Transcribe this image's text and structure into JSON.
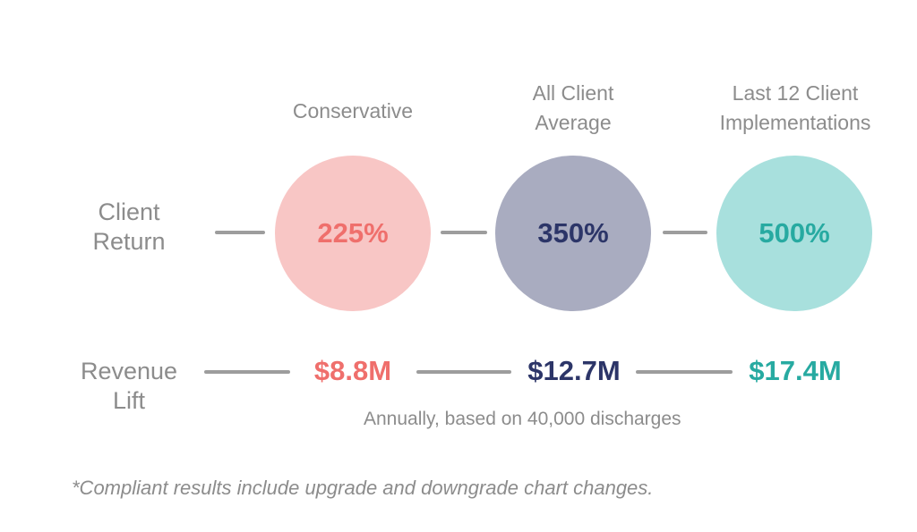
{
  "columns": [
    {
      "header": "Conservative",
      "return": "225%",
      "revenue": "$8.8M"
    },
    {
      "header": "All Client Average",
      "return": "350%",
      "revenue": "$12.7M"
    },
    {
      "header": "Last 12 Client Implementations",
      "return": "500%",
      "revenue": "$17.4M"
    }
  ],
  "rows": {
    "client_return": {
      "line1": "Client",
      "line2": "Return"
    },
    "revenue_lift": {
      "line1": "Revenue",
      "line2": "Lift"
    }
  },
  "headers": {
    "col1": {
      "line1": "Conservative"
    },
    "col2": {
      "line1": "All Client",
      "line2": "Average"
    },
    "col3": {
      "line1": "Last 12 Client",
      "line2": "Implementations"
    }
  },
  "values": {
    "return_1": "225%",
    "return_2": "350%",
    "return_3": "500%",
    "revenue_1": "$8.8M",
    "revenue_2": "$12.7M",
    "revenue_3": "$17.4M"
  },
  "note": "Annually, based on 40,000 discharges",
  "footnote": "*Compliant results include upgrade and downgrade chart changes.",
  "colors": {
    "conservative_circle": "#f8c6c5",
    "conservative_text": "#ef6f6c",
    "average_circle": "#a9acc0",
    "average_text": "#2c3568",
    "last12_circle": "#a8e0dd",
    "last12_text": "#27aaa1",
    "connector": "#9d9d9d",
    "label_text": "#8c8c8c"
  }
}
